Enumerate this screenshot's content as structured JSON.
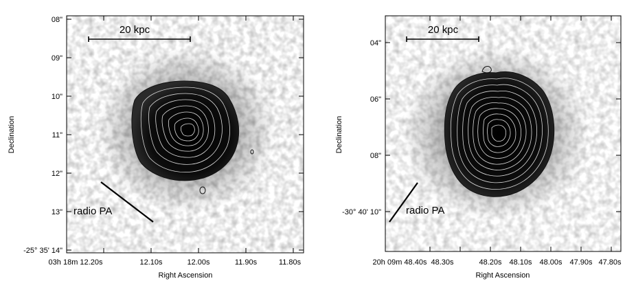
{
  "panels": [
    {
      "id": "left",
      "scalebar_label": "20 kpc",
      "radio_label": "radio PA",
      "xlabel": "Right Ascension",
      "ylabel": "Declination",
      "y_ticks": [
        {
          "text": "08\""
        },
        {
          "text": "09\""
        },
        {
          "text": "10\""
        },
        {
          "text": "11\""
        },
        {
          "text": "12\""
        },
        {
          "text": "13\""
        },
        {
          "text": "-25° 35' 14\"",
          "sup_deg": true
        }
      ],
      "x_ticks": [
        {
          "text": "03h 18m 12.20s"
        },
        {
          "text": "12.10s"
        },
        {
          "text": "12.00s"
        },
        {
          "text": "11.90s"
        },
        {
          "text": "11.80s"
        }
      ]
    },
    {
      "id": "right",
      "scalebar_label": "20 kpc",
      "radio_label": "radio PA",
      "xlabel": "Right Ascension",
      "ylabel": "Declination",
      "y_ticks": [
        {
          "text": "04\""
        },
        {
          "text": "06\""
        },
        {
          "text": "08\""
        },
        {
          "text": "-30° 40' 10\""
        }
      ],
      "x_ticks": [
        {
          "text": "20h 09m 48.40s"
        },
        {
          "text": "48.30s"
        },
        {
          "text": "48.20s"
        },
        {
          "text": "48.10s"
        },
        {
          "text": "48.00s"
        },
        {
          "text": "47.90s"
        },
        {
          "text": "47.80s"
        }
      ]
    }
  ]
}
